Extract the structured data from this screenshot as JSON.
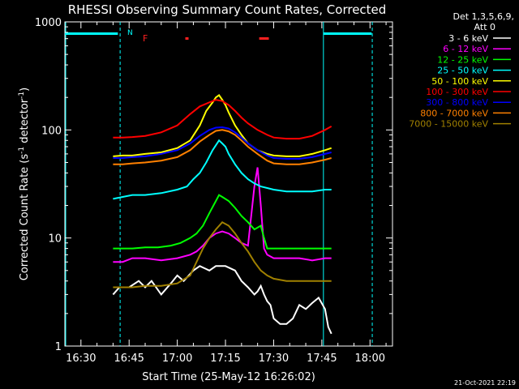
{
  "chart_data": {
    "type": "line",
    "title": "RHESSI Observing Summary Count Rates, Corrected",
    "xlabel": "Start Time (25-May-12 16:26:02)",
    "ylabel": "Corrected Count Rate (s",
    "ylabel_sup1": "-1",
    "ylabel_mid": " detector",
    "ylabel_sup2": "-1",
    "ylabel_end": ")",
    "yscale": "log",
    "ylim": [
      1,
      1000
    ],
    "y_ticks": [
      {
        "value": 1,
        "label": "1"
      },
      {
        "value": 10,
        "label": "10"
      },
      {
        "value": 100,
        "label": "100"
      },
      {
        "value": 1000,
        "label": "1000"
      }
    ],
    "xlim": [
      985,
      1087
    ],
    "x_ticks": [
      {
        "value": 990,
        "label": "16:30"
      },
      {
        "value": 1005,
        "label": "16:45"
      },
      {
        "value": 1020,
        "label": "17:00"
      },
      {
        "value": 1035,
        "label": "17:15"
      },
      {
        "value": 1050,
        "label": "17:30"
      },
      {
        "value": 1065,
        "label": "17:45"
      },
      {
        "value": 1080,
        "label": "18:00"
      }
    ],
    "legend_header": [
      "Det 1,3,5,6,9,",
      "Att 0"
    ],
    "legend_position": "right",
    "footer_date": "21-Oct-2021 22:19",
    "markers": {
      "night_label": "N",
      "flare_label": "F",
      "night_bars": [
        [
          985,
          1001.5
        ],
        [
          1065.5,
          1080.5
        ]
      ],
      "flare_bars": [
        [
          1022.5,
          1023.5
        ],
        [
          1045.5,
          1048.5
        ]
      ]
    },
    "vertical_lines": [
      1002.2,
      1065.5,
      1080.7
    ],
    "series": [
      {
        "name": "3 - 6 keV",
        "color": "#ffffff",
        "x": [
          1000,
          1002,
          1005,
          1008,
          1010,
          1012,
          1015,
          1018,
          1020,
          1022,
          1025,
          1027,
          1030,
          1032,
          1035,
          1038,
          1040,
          1042,
          1044,
          1045,
          1046,
          1047,
          1048,
          1049,
          1050,
          1052,
          1054,
          1056,
          1058,
          1060,
          1062,
          1064,
          1066,
          1067,
          1068
        ],
        "y": [
          3,
          3.5,
          3.5,
          4,
          3.5,
          4,
          3,
          3.8,
          4.5,
          4,
          5,
          5.5,
          5,
          5.5,
          5.5,
          5,
          4,
          3.5,
          3,
          3.2,
          3.6,
          3,
          2.6,
          2.4,
          1.8,
          1.6,
          1.6,
          1.8,
          2.4,
          2.2,
          2.5,
          2.8,
          2.2,
          1.5,
          1.3
        ]
      },
      {
        "name": "6 - 12 keV",
        "color": "#ff00ff",
        "x": [
          1000,
          1003,
          1006,
          1010,
          1015,
          1020,
          1024,
          1026,
          1028,
          1030,
          1032,
          1034,
          1036,
          1038,
          1040,
          1042,
          1044,
          1045,
          1046,
          1047,
          1048,
          1050,
          1054,
          1058,
          1062,
          1066,
          1068
        ],
        "y": [
          6,
          6,
          6.5,
          6.5,
          6.2,
          6.5,
          7,
          7.5,
          8.5,
          10,
          11,
          11.5,
          11,
          10,
          9,
          8.5,
          30,
          45,
          20,
          8,
          7,
          6.5,
          6.5,
          6.5,
          6.2,
          6.5,
          6.5
        ]
      },
      {
        "name": "12 - 25 keV",
        "color": "#00ff00",
        "x": [
          1000,
          1003,
          1006,
          1010,
          1014,
          1018,
          1021,
          1024,
          1026,
          1028,
          1030,
          1032,
          1033,
          1034,
          1036,
          1038,
          1040,
          1042,
          1044,
          1046,
          1047,
          1048,
          1050,
          1054,
          1058,
          1062,
          1066,
          1068
        ],
        "y": [
          8,
          8,
          8,
          8.2,
          8.2,
          8.5,
          9,
          10,
          11,
          13,
          17,
          22,
          25,
          24,
          22,
          19,
          16,
          14,
          12,
          13,
          10,
          8,
          8,
          8,
          8,
          8,
          8,
          8
        ]
      },
      {
        "name": "25 - 50 keV",
        "color": "#00ffff",
        "x": [
          1000,
          1003,
          1006,
          1010,
          1015,
          1020,
          1023,
          1025,
          1027,
          1029,
          1031,
          1033,
          1034,
          1035,
          1036,
          1038,
          1040,
          1042,
          1044,
          1046,
          1048,
          1050,
          1054,
          1058,
          1062,
          1066,
          1068
        ],
        "y": [
          23,
          24,
          25,
          25,
          26,
          28,
          30,
          35,
          40,
          50,
          65,
          80,
          75,
          70,
          60,
          48,
          40,
          35,
          32,
          30,
          29,
          28,
          27,
          27,
          27,
          28,
          28
        ]
      },
      {
        "name": "50 - 100 keV",
        "color": "#ffff00",
        "x": [
          1000,
          1003,
          1006,
          1010,
          1015,
          1020,
          1024,
          1027,
          1029,
          1031,
          1032,
          1033,
          1034,
          1035,
          1036,
          1038,
          1040,
          1042,
          1045,
          1048,
          1050,
          1054,
          1058,
          1062,
          1066,
          1068
        ],
        "y": [
          57,
          58,
          58,
          60,
          62,
          68,
          80,
          110,
          150,
          180,
          200,
          210,
          190,
          170,
          145,
          110,
          90,
          75,
          65,
          60,
          58,
          57,
          57,
          60,
          65,
          68
        ]
      },
      {
        "name": "100 - 300 keV",
        "color": "#ff0000",
        "x": [
          1000,
          1003,
          1006,
          1010,
          1015,
          1020,
          1024,
          1027,
          1030,
          1032,
          1034,
          1036,
          1038,
          1040,
          1042,
          1045,
          1048,
          1050,
          1054,
          1058,
          1062,
          1066,
          1068
        ],
        "y": [
          85,
          85,
          86,
          88,
          95,
          110,
          140,
          165,
          180,
          190,
          185,
          170,
          150,
          130,
          115,
          100,
          90,
          85,
          83,
          83,
          88,
          100,
          108
        ]
      },
      {
        "name": "300 - 800 keV",
        "color": "#0000ff",
        "x": [
          1000,
          1003,
          1006,
          1010,
          1015,
          1020,
          1024,
          1027,
          1030,
          1032,
          1034,
          1036,
          1038,
          1040,
          1042,
          1045,
          1048,
          1050,
          1054,
          1058,
          1062,
          1066,
          1068
        ],
        "y": [
          55,
          55,
          56,
          57,
          60,
          65,
          75,
          88,
          100,
          105,
          106,
          103,
          95,
          85,
          75,
          65,
          58,
          55,
          54,
          54,
          56,
          60,
          62
        ]
      },
      {
        "name": "800 - 7000 keV",
        "color": "#ff8000",
        "x": [
          1000,
          1003,
          1006,
          1010,
          1015,
          1020,
          1024,
          1027,
          1030,
          1032,
          1034,
          1036,
          1038,
          1040,
          1042,
          1045,
          1048,
          1050,
          1054,
          1058,
          1062,
          1066,
          1068
        ],
        "y": [
          48,
          48,
          49,
          50,
          52,
          56,
          65,
          78,
          90,
          98,
          100,
          97,
          90,
          80,
          70,
          60,
          52,
          49,
          48,
          48,
          50,
          53,
          55
        ]
      },
      {
        "name": "7000 - 15000 keV",
        "color": "#a08000",
        "x": [
          1000,
          1003,
          1006,
          1010,
          1015,
          1020,
          1024,
          1026,
          1028,
          1030,
          1032,
          1034,
          1036,
          1038,
          1040,
          1042,
          1044,
          1046,
          1048,
          1050,
          1054,
          1058,
          1062,
          1066,
          1068
        ],
        "y": [
          3.5,
          3.5,
          3.5,
          3.6,
          3.6,
          3.8,
          4.5,
          6,
          8,
          10,
          12,
          14,
          13,
          11,
          9,
          7.5,
          6,
          5,
          4.5,
          4.2,
          4,
          4,
          4,
          4,
          4
        ]
      }
    ]
  }
}
